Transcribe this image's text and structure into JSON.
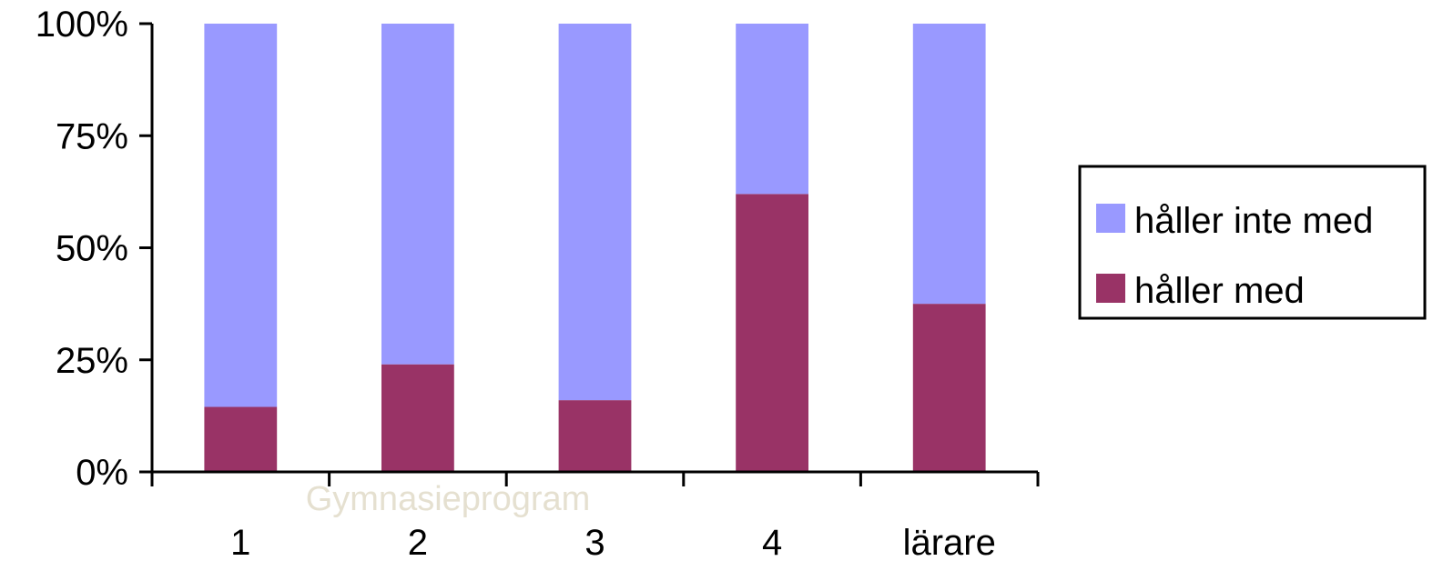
{
  "chart_data": {
    "type": "bar",
    "stacked": true,
    "percent": true,
    "categories": [
      "1",
      "2",
      "3",
      "4",
      "lärare"
    ],
    "series": [
      {
        "name": "håller med",
        "color": "#993366",
        "values": [
          14.5,
          24,
          16,
          62,
          37.5
        ]
      },
      {
        "name": "håller inte med",
        "color": "#9999FF",
        "values": [
          85.5,
          76,
          84,
          38,
          62.5
        ]
      }
    ],
    "yticks": [
      "0%",
      "25%",
      "50%",
      "75%",
      "100%"
    ],
    "ylim": [
      0,
      100
    ],
    "xlabel": "Gymnasieprogram",
    "xlabel_color": "#E5E0D0",
    "grid": false,
    "legend": {
      "position": "right",
      "entries": [
        "håller inte med",
        "håller med"
      ]
    }
  }
}
